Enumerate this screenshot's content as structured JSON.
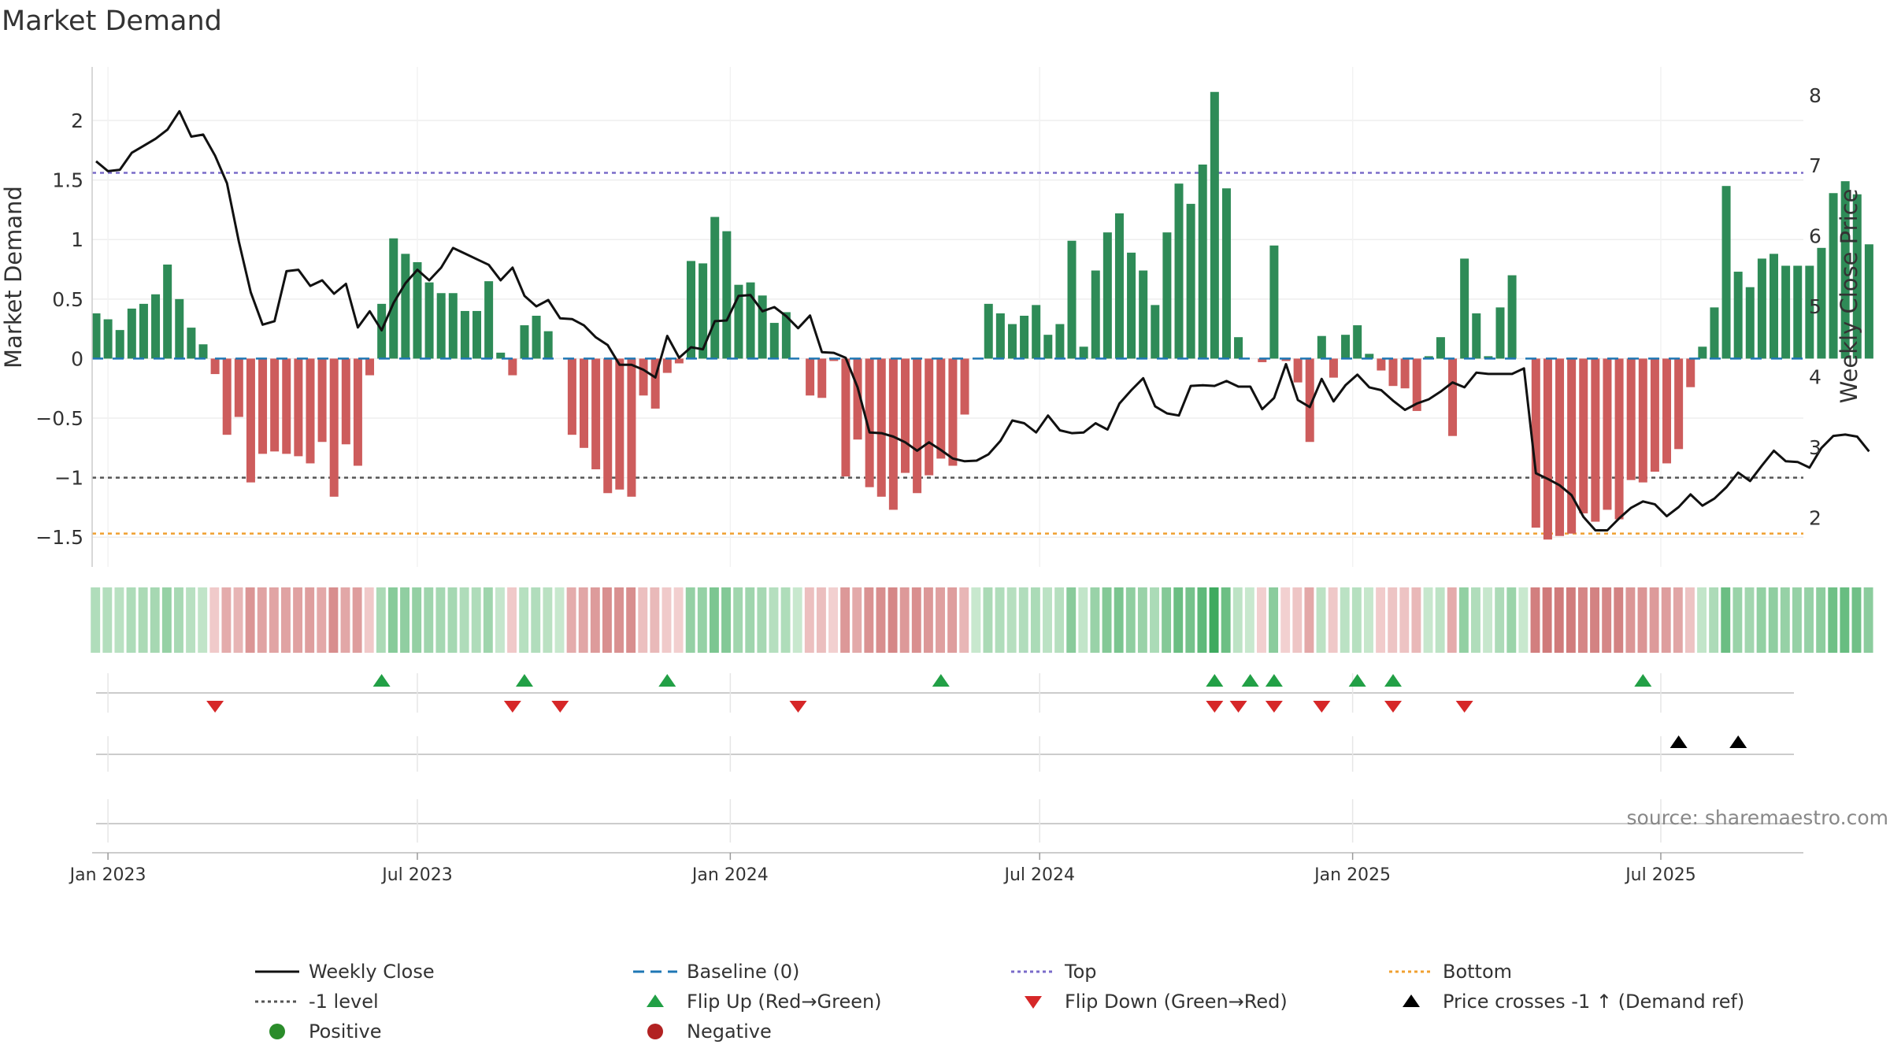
{
  "title": "Market Demand",
  "source_note": "source: sharemaestro.com",
  "colors": {
    "positive_bar": "#2e8b57",
    "negative_bar": "#cd5c5c",
    "close_line": "#111111",
    "baseline": "#1f77b4",
    "top_line": "#7a6bc9",
    "bottom_line": "#f0a030",
    "minus1_line": "#555555",
    "flip_up": "#22a046",
    "flip_down": "#d62728",
    "cross": "#000000",
    "positive_dot": "#2a8c2a",
    "negative_dot": "#b22222"
  },
  "legend": [
    {
      "key": "close",
      "label": "Weekly Close",
      "symbol": "line-solid",
      "color": "#111111"
    },
    {
      "key": "baseline",
      "label": "Baseline (0)",
      "symbol": "line-dash",
      "color": "#1f77b4"
    },
    {
      "key": "top",
      "label": "Top",
      "symbol": "line-dot",
      "color": "#7a6bc9"
    },
    {
      "key": "bottom",
      "label": "Bottom",
      "symbol": "line-dot",
      "color": "#f0a030"
    },
    {
      "key": "minus1",
      "label": "-1 level",
      "symbol": "line-dot",
      "color": "#555555"
    },
    {
      "key": "flip_up",
      "label": "Flip Up (Red→Green)",
      "symbol": "tri-up",
      "color": "#22a046"
    },
    {
      "key": "flip_down",
      "label": "Flip Down (Green→Red)",
      "symbol": "tri-down",
      "color": "#d62728"
    },
    {
      "key": "cross",
      "label": "Price crosses -1 ↑ (Demand ref)",
      "symbol": "tri-up",
      "color": "#000000"
    },
    {
      "key": "positive",
      "label": "Positive",
      "symbol": "dot",
      "color": "#2a8c2a"
    },
    {
      "key": "negative",
      "label": "Negative",
      "symbol": "dot",
      "color": "#b22222"
    }
  ],
  "chart_data": {
    "type": "bar",
    "title": "Market Demand",
    "ylabel": "Market Demand",
    "y2label": "Weekly Close Price",
    "ylim": [
      -1.75,
      2.45
    ],
    "y2lim": [
      1.3,
      8.4
    ],
    "yticks": [
      {
        "v": 2,
        "label": "2"
      },
      {
        "v": 1.5,
        "label": "1.5"
      },
      {
        "v": 1,
        "label": "1"
      },
      {
        "v": 0.5,
        "label": "0.5"
      },
      {
        "v": 0,
        "label": "0"
      },
      {
        "v": -0.5,
        "label": "−0.5"
      },
      {
        "v": -1,
        "label": "−1"
      },
      {
        "v": -1.5,
        "label": "−1.5"
      }
    ],
    "y2ticks": [
      {
        "v": 8,
        "label": "8"
      },
      {
        "v": 7,
        "label": "7"
      },
      {
        "v": 6,
        "label": "6"
      },
      {
        "v": 5,
        "label": "5"
      },
      {
        "v": 4,
        "label": "4"
      },
      {
        "v": 3,
        "label": "3"
      },
      {
        "v": 2,
        "label": "2"
      }
    ],
    "xticks": [
      {
        "w": 1,
        "label": "Jan 2023"
      },
      {
        "w": 27,
        "label": "Jul 2023"
      },
      {
        "w": 53.3,
        "label": "Jan 2024"
      },
      {
        "w": 79.3,
        "label": "Jul 2024"
      },
      {
        "w": 105.6,
        "label": "Jan 2025"
      },
      {
        "w": 131.5,
        "label": "Jul 2025"
      }
    ],
    "levels": {
      "top": 1.56,
      "bottom": -1.47,
      "minus1": -1,
      "baseline": 0
    },
    "weeks_start": "Dec 2022",
    "demand": [
      0.38,
      0.33,
      0.24,
      0.42,
      0.46,
      0.54,
      0.79,
      0.5,
      0.26,
      0.12,
      -0.13,
      -0.64,
      -0.49,
      -1.04,
      -0.8,
      -0.78,
      -0.8,
      -0.82,
      -0.88,
      -0.7,
      -1.16,
      -0.72,
      -0.9,
      -0.14,
      0.46,
      1.01,
      0.88,
      0.81,
      0.64,
      0.55,
      0.55,
      0.4,
      0.4,
      0.65,
      0.05,
      -0.14,
      0.28,
      0.36,
      0.23,
      0,
      -0.64,
      -0.75,
      -0.93,
      -1.13,
      -1.1,
      -1.16,
      -0.31,
      -0.42,
      -0.12,
      -0.04,
      0.82,
      0.8,
      1.19,
      1.07,
      0.62,
      0.64,
      0.53,
      0.3,
      0.39,
      0,
      -0.31,
      -0.33,
      -0.02,
      -0.99,
      -0.68,
      -1.08,
      -1.16,
      -1.27,
      -0.96,
      -1.13,
      -0.98,
      -0.84,
      -0.9,
      -0.47,
      0,
      0.46,
      0.38,
      0.29,
      0.36,
      0.45,
      0.2,
      0.29,
      0.99,
      0.1,
      0.74,
      1.06,
      1.22,
      0.89,
      0.74,
      0.45,
      1.06,
      1.47,
      1.3,
      1.63,
      2.24,
      1.43,
      0.18,
      0,
      -0.03,
      0.95,
      -0.02,
      -0.2,
      -0.7,
      0.19,
      -0.16,
      0.2,
      0.28,
      0.04,
      -0.1,
      -0.23,
      -0.25,
      -0.44,
      0.02,
      0.18,
      -0.65,
      0.84,
      0.38,
      0.02,
      0.43,
      0.7,
      0,
      -1.42,
      -1.52,
      -1.49,
      -1.47,
      -1.3,
      -1.37,
      -1.27,
      -1.35,
      -1.02,
      -1.04,
      -0.95,
      -0.88,
      -0.76,
      -0.24,
      0.1,
      0.43,
      1.45,
      0.73,
      0.6,
      0.84,
      0.88,
      0.78,
      0.78,
      0.78,
      0.93,
      1.39,
      1.49,
      1.38,
      0.96
    ],
    "close": [
      7.06,
      6.92,
      6.94,
      7.18,
      7.28,
      7.38,
      7.51,
      7.77,
      7.41,
      7.44,
      7.14,
      6.75,
      5.92,
      5.2,
      4.74,
      4.79,
      5.5,
      5.52,
      5.29,
      5.37,
      5.18,
      5.32,
      4.7,
      4.93,
      4.66,
      5.05,
      5.33,
      5.52,
      5.37,
      5.55,
      5.83,
      5.75,
      5.67,
      5.59,
      5.37,
      5.55,
      5.15,
      5.0,
      5.09,
      4.83,
      4.82,
      4.73,
      4.56,
      4.45,
      4.17,
      4.17,
      4.1,
      3.99,
      4.58,
      4.27,
      4.42,
      4.39,
      4.79,
      4.8,
      5.15,
      5.16,
      4.93,
      4.99,
      4.86,
      4.69,
      4.87,
      4.35,
      4.34,
      4.27,
      3.85,
      3.21,
      3.2,
      3.15,
      3.07,
      2.95,
      3.07,
      2.96,
      2.84,
      2.8,
      2.81,
      2.9,
      3.09,
      3.38,
      3.34,
      3.21,
      3.45,
      3.24,
      3.2,
      3.21,
      3.34,
      3.25,
      3.62,
      3.81,
      3.98,
      3.58,
      3.48,
      3.45,
      3.87,
      3.88,
      3.87,
      3.94,
      3.86,
      3.86,
      3.54,
      3.7,
      4.18,
      3.67,
      3.57,
      3.97,
      3.65,
      3.88,
      4.03,
      3.85,
      3.81,
      3.66,
      3.53,
      3.62,
      3.68,
      3.79,
      3.92,
      3.85,
      4.06,
      4.04,
      4.04,
      4.04,
      4.12,
      2.63,
      2.55,
      2.46,
      2.32,
      2.01,
      1.82,
      1.82,
      1.99,
      2.14,
      2.23,
      2.19,
      2.02,
      2.15,
      2.33,
      2.17,
      2.27,
      2.43,
      2.64,
      2.52,
      2.74,
      2.95,
      2.8,
      2.79,
      2.71,
      2.99,
      3.16,
      3.18,
      3.15,
      2.94
    ],
    "flip_up_weeks": [
      24,
      36,
      48,
      71,
      94,
      97,
      99,
      106,
      109,
      130
    ],
    "flip_down_weeks": [
      10,
      35,
      39,
      59,
      94,
      96,
      99,
      103,
      109,
      115
    ],
    "cross_weeks": [
      133,
      138
    ]
  }
}
